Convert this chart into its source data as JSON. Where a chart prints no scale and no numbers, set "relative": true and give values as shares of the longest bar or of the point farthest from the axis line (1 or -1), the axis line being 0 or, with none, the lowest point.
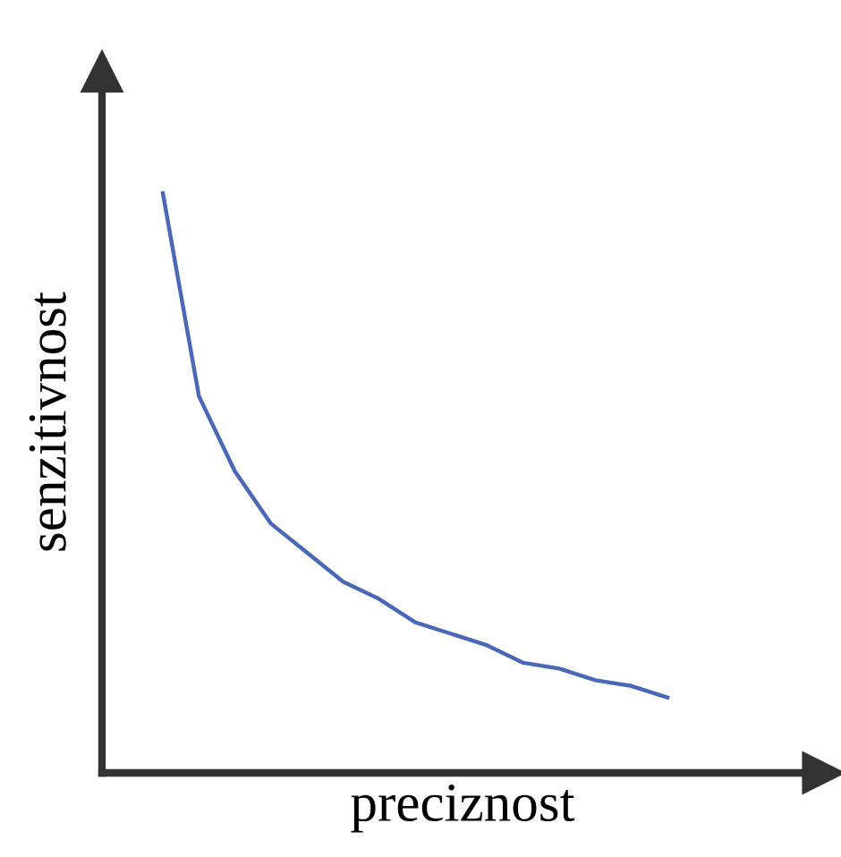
{
  "chart_data": {
    "type": "line",
    "relative": true,
    "xlabel": "preciznost",
    "ylabel": "senzitivnost",
    "categories": [
      null,
      null,
      null,
      null,
      null,
      null,
      null,
      null,
      null,
      null,
      null,
      null,
      null,
      null,
      null
    ],
    "series": [
      {
        "color": "#4a68b5",
        "values": [
          1.0,
          0.65,
          0.52,
          0.43,
          0.38,
          0.33,
          0.3,
          0.26,
          0.24,
          0.22,
          0.19,
          0.18,
          0.16,
          0.15,
          0.13
        ]
      }
    ],
    "marker": "none",
    "line_style": "solid"
  }
}
